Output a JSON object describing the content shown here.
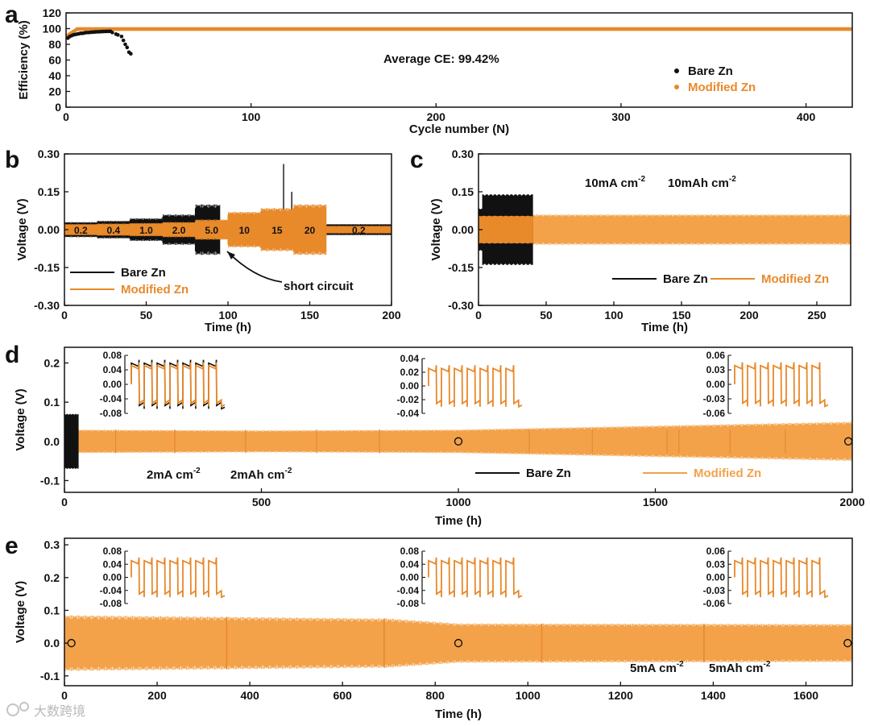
{
  "colors": {
    "bare": "#111111",
    "modified": "#f3a24a",
    "modified_dark": "#e8892a",
    "axis": "#111111"
  },
  "watermark": "大数跨境",
  "chart_data": [
    {
      "panel": "a",
      "type": "scatter",
      "xlabel": "Cycle number (N)",
      "ylabel": "Efficiency (%)",
      "xlim": [
        0,
        425
      ],
      "ylim": [
        0,
        120
      ],
      "xticks": [
        "0",
        "100",
        "200",
        "300",
        "400"
      ],
      "xtick_values": [
        0,
        100,
        200,
        300,
        400
      ],
      "yticks": [
        "0",
        "20",
        "40",
        "60",
        "80",
        "100",
        "120"
      ],
      "ytick_values": [
        0,
        20,
        40,
        60,
        80,
        100,
        120
      ],
      "annotation": "Average CE:  99.42%",
      "legend": [
        "Bare Zn",
        "Modified Zn"
      ],
      "series": [
        {
          "name": "Bare Zn",
          "x": [
            1,
            2,
            3,
            4,
            5,
            6,
            7,
            8,
            9,
            10,
            11,
            12,
            13,
            14,
            15,
            16,
            17,
            18,
            19,
            20,
            21,
            22,
            23,
            24,
            25,
            27,
            28,
            30,
            31,
            32,
            33,
            34,
            35
          ],
          "y": [
            88,
            90,
            91,
            92,
            92.5,
            93,
            93.5,
            94,
            94,
            94.5,
            95,
            95,
            95.2,
            95.5,
            95.6,
            95.8,
            96,
            96,
            96.2,
            96.3,
            96.4,
            96.5,
            96.5,
            96.6,
            95,
            93,
            92,
            90,
            85,
            80,
            76,
            70,
            68
          ]
        },
        {
          "name": "Modified Zn",
          "x_start": 1,
          "x_end": 425,
          "y_start": 90,
          "y_plateau": 99.4
        }
      ]
    },
    {
      "panel": "b",
      "type": "line",
      "xlabel": "Time (h)",
      "ylabel": "Voltage (V)",
      "xlim": [
        0,
        200
      ],
      "ylim": [
        -0.3,
        0.3
      ],
      "xticks": [
        "0",
        "50",
        "100",
        "150",
        "200"
      ],
      "xtick_values": [
        0,
        50,
        100,
        150,
        200
      ],
      "yticks": [
        "0.30",
        "0.15",
        "0.00",
        "-0.15",
        "-0.30"
      ],
      "ytick_values": [
        0.3,
        0.15,
        0,
        -0.15,
        -0.3
      ],
      "rate_labels": [
        {
          "text": "0.2",
          "x": 10
        },
        {
          "text": "0.4",
          "x": 30
        },
        {
          "text": "1.0",
          "x": 50
        },
        {
          "text": "2.0",
          "x": 70
        },
        {
          "text": "5.0",
          "x": 90
        },
        {
          "text": "10",
          "x": 110
        },
        {
          "text": "15",
          "x": 130
        },
        {
          "text": "20",
          "x": 150
        },
        {
          "text": "0.2",
          "x": 180
        }
      ],
      "annotation": "short circuit",
      "legend": [
        "Bare Zn",
        "Modified Zn"
      ],
      "series": [
        {
          "name": "Bare Zn",
          "segments": [
            {
              "t0": 0,
              "t1": 20,
              "amp": 0.03
            },
            {
              "t0": 20,
              "t1": 40,
              "amp": 0.035
            },
            {
              "t0": 40,
              "t1": 60,
              "amp": 0.045
            },
            {
              "t0": 60,
              "t1": 80,
              "amp": 0.06
            },
            {
              "t0": 80,
              "t1": 95,
              "amp": 0.1
            },
            {
              "t0": 95,
              "t1": 200,
              "amp": 0.022
            }
          ],
          "spikes": [
            {
              "t": 134,
              "v": 0.26
            },
            {
              "t": 139,
              "v": 0.15
            }
          ]
        },
        {
          "name": "Modified Zn",
          "segments": [
            {
              "t0": 0,
              "t1": 20,
              "amp": 0.022
            },
            {
              "t0": 20,
              "t1": 40,
              "amp": 0.024
            },
            {
              "t0": 40,
              "t1": 60,
              "amp": 0.026
            },
            {
              "t0": 60,
              "t1": 80,
              "amp": 0.03
            },
            {
              "t0": 80,
              "t1": 100,
              "amp": 0.04
            },
            {
              "t0": 100,
              "t1": 120,
              "amp": 0.07
            },
            {
              "t0": 120,
              "t1": 140,
              "amp": 0.085
            },
            {
              "t0": 140,
              "t1": 160,
              "amp": 0.1
            },
            {
              "t0": 160,
              "t1": 200,
              "amp": 0.015
            }
          ]
        }
      ]
    },
    {
      "panel": "c",
      "type": "line",
      "xlabel": "Time (h)",
      "ylabel": "Voltage (V)",
      "xlim": [
        0,
        275
      ],
      "ylim": [
        -0.3,
        0.3
      ],
      "xticks": [
        "0",
        "50",
        "100",
        "150",
        "200",
        "250"
      ],
      "xtick_values": [
        0,
        50,
        100,
        150,
        200,
        250
      ],
      "yticks": [
        "0.30",
        "0.15",
        "0.00",
        "-0.15",
        "-0.30"
      ],
      "ytick_values": [
        0.3,
        0.15,
        0,
        -0.15,
        -0.3
      ],
      "condition": {
        "current": "10mA cm",
        "current_exp": "-2",
        "capacity": "10mAh cm",
        "capacity_exp": "-2"
      },
      "legend": [
        "Bare Zn",
        "Modified Zn"
      ],
      "series": [
        {
          "name": "Bare Zn",
          "t0": 0,
          "t1": 40,
          "amp": 0.14
        },
        {
          "name": "Modified Zn",
          "t0": 0,
          "t1": 275,
          "amp_start": 0.06,
          "amp_end": 0.06
        }
      ]
    },
    {
      "panel": "d",
      "type": "line",
      "xlabel": "Time (h)",
      "ylabel": "Voltage (V)",
      "xlim": [
        0,
        2000
      ],
      "ylim": [
        -0.13,
        0.24
      ],
      "xticks": [
        "0",
        "500",
        "1000",
        "1500",
        "2000"
      ],
      "xtick_values": [
        0,
        500,
        1000,
        1500,
        2000
      ],
      "yticks": [
        "0.2",
        "0.1",
        "0.0",
        "-0.1"
      ],
      "ytick_values": [
        0.2,
        0.1,
        0,
        -0.1
      ],
      "condition": {
        "current": "2mA cm",
        "current_exp": "-2",
        "capacity": "2mAh cm",
        "capacity_exp": "-2"
      },
      "legend": [
        "Bare Zn",
        "Modified Zn"
      ],
      "series": [
        {
          "name": "Bare Zn",
          "t0": 0,
          "t1": 35,
          "amp": 0.07
        },
        {
          "name": "Modified Zn",
          "t0": 0,
          "t1": 2000,
          "amp_profile": [
            [
              0,
              0.03
            ],
            [
              500,
              0.028
            ],
            [
              1000,
              0.03
            ],
            [
              1500,
              0.04
            ],
            [
              2000,
              0.05
            ]
          ]
        }
      ],
      "markers": [
        15,
        1000,
        1990
      ],
      "insets": [
        {
          "yticks": [
            "0.08",
            "0.04",
            "0.00",
            "-0.04",
            "-0.08"
          ],
          "ymax": 0.08,
          "bare": true
        },
        {
          "yticks": [
            "0.04",
            "0.02",
            "0.00",
            "-0.02",
            "-0.04"
          ],
          "ymax": 0.04,
          "bare": false
        },
        {
          "yticks": [
            "0.06",
            "0.03",
            "0.00",
            "-0.03",
            "-0.06"
          ],
          "ymax": 0.06,
          "bare": false
        }
      ]
    },
    {
      "panel": "e",
      "type": "line",
      "xlabel": "Time (h)",
      "ylabel": "Voltage (V)",
      "xlim": [
        0,
        1700
      ],
      "ylim": [
        -0.13,
        0.32
      ],
      "xticks": [
        "0",
        "200",
        "400",
        "600",
        "800",
        "1000",
        "1200",
        "1400",
        "1600"
      ],
      "xtick_values": [
        0,
        200,
        400,
        600,
        800,
        1000,
        1200,
        1400,
        1600
      ],
      "yticks": [
        "0.3",
        "0.2",
        "0.1",
        "0.0",
        "-0.1"
      ],
      "ytick_values": [
        0.3,
        0.2,
        0.1,
        0,
        -0.1
      ],
      "condition": {
        "current": "5mA cm",
        "current_exp": "-2",
        "capacity": "5mAh cm",
        "capacity_exp": "-2"
      },
      "series": [
        {
          "name": "Modified Zn",
          "t0": 0,
          "t1": 1700,
          "amp_profile": [
            [
              0,
              0.085
            ],
            [
              700,
              0.075
            ],
            [
              850,
              0.06
            ],
            [
              1700,
              0.058
            ]
          ]
        }
      ],
      "markers": [
        15,
        850,
        1690
      ],
      "insets": [
        {
          "yticks": [
            "0.08",
            "0.04",
            "0.00",
            "-0.04",
            "-0.08"
          ],
          "ymax": 0.08,
          "bare": false
        },
        {
          "yticks": [
            "0.08",
            "0.04",
            "0.00",
            "-0.04",
            "-0.08"
          ],
          "ymax": 0.08,
          "bare": false
        },
        {
          "yticks": [
            "0.06",
            "0.03",
            "0.00",
            "-0.03",
            "-0.06"
          ],
          "ymax": 0.06,
          "bare": false
        }
      ]
    }
  ]
}
